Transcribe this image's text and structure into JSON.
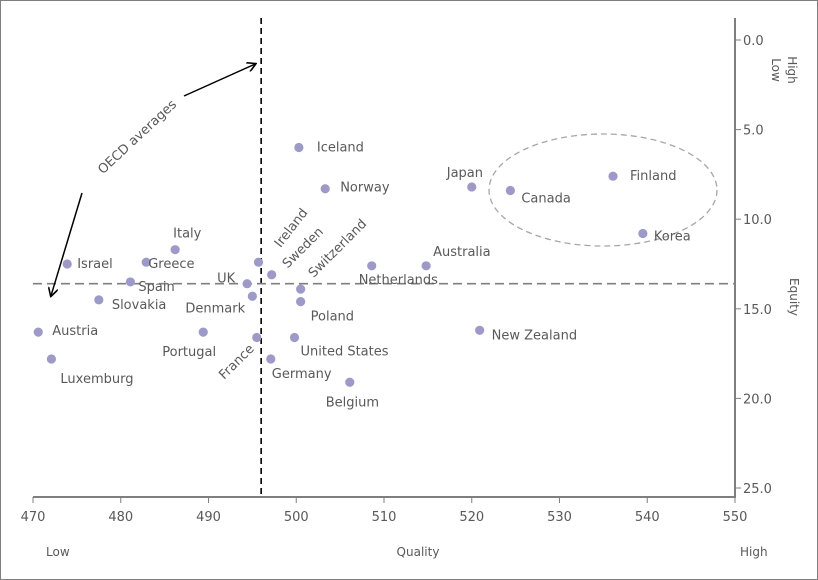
{
  "chart_data": {
    "type": "scatter",
    "title": "",
    "xlabel": "Quality",
    "x_low_label": "Low",
    "x_high_label": "High",
    "ylabel": "Equity",
    "y_top_label": "Low",
    "y_bottom_label": "High",
    "xlim": [
      470,
      550
    ],
    "ylim": [
      0,
      25
    ],
    "y_axis_side": "right",
    "y_axis_inverted": true,
    "x_ticks": [
      "470",
      "480",
      "490",
      "500",
      "510",
      "520",
      "530",
      "540",
      "550"
    ],
    "y_ticks": [
      "0.0",
      "5.0",
      "10.0",
      "15.0",
      "20.0",
      "25.0"
    ],
    "grid": false,
    "point_color": "#9e9ac8",
    "reference_lines": {
      "label": "OECD averages",
      "x_value": 496,
      "y_value": 13.6
    },
    "ellipse_group": [
      "Finland",
      "Korea",
      "Canada",
      "Japan"
    ],
    "points": [
      {
        "name": "Iceland",
        "x": 500.3,
        "y": 6.0
      },
      {
        "name": "Norway",
        "x": 503.3,
        "y": 8.3
      },
      {
        "name": "Japan",
        "x": 520.0,
        "y": 8.2
      },
      {
        "name": "Canada",
        "x": 524.4,
        "y": 8.4
      },
      {
        "name": "Finland",
        "x": 536.1,
        "y": 7.6
      },
      {
        "name": "Korea",
        "x": 539.5,
        "y": 10.8
      },
      {
        "name": "Australia",
        "x": 514.8,
        "y": 12.6
      },
      {
        "name": "Netherlands",
        "x": 508.6,
        "y": 12.6
      },
      {
        "name": "Ireland",
        "x": 495.7,
        "y": 12.4
      },
      {
        "name": "Sweden",
        "x": 497.2,
        "y": 13.1
      },
      {
        "name": "Switzerland",
        "x": 500.5,
        "y": 13.9
      },
      {
        "name": "UK",
        "x": 494.4,
        "y": 13.6
      },
      {
        "name": "Denmark",
        "x": 495.0,
        "y": 14.3
      },
      {
        "name": "Poland",
        "x": 500.5,
        "y": 14.6
      },
      {
        "name": "Israel",
        "x": 473.9,
        "y": 12.5
      },
      {
        "name": "Greece",
        "x": 482.9,
        "y": 12.4
      },
      {
        "name": "Italy",
        "x": 486.2,
        "y": 11.7
      },
      {
        "name": "Spain",
        "x": 481.1,
        "y": 13.5
      },
      {
        "name": "Slovakia",
        "x": 477.5,
        "y": 14.5
      },
      {
        "name": "Austria",
        "x": 470.6,
        "y": 16.3
      },
      {
        "name": "Luxemburg",
        "x": 472.1,
        "y": 17.8
      },
      {
        "name": "Portugal",
        "x": 489.4,
        "y": 16.3
      },
      {
        "name": "France",
        "x": 495.5,
        "y": 16.6
      },
      {
        "name": "United States",
        "x": 499.8,
        "y": 16.6
      },
      {
        "name": "Germany",
        "x": 497.1,
        "y": 17.8
      },
      {
        "name": "Belgium",
        "x": 506.1,
        "y": 19.1
      },
      {
        "name": "New Zealand",
        "x": 520.9,
        "y": 16.2
      }
    ]
  }
}
